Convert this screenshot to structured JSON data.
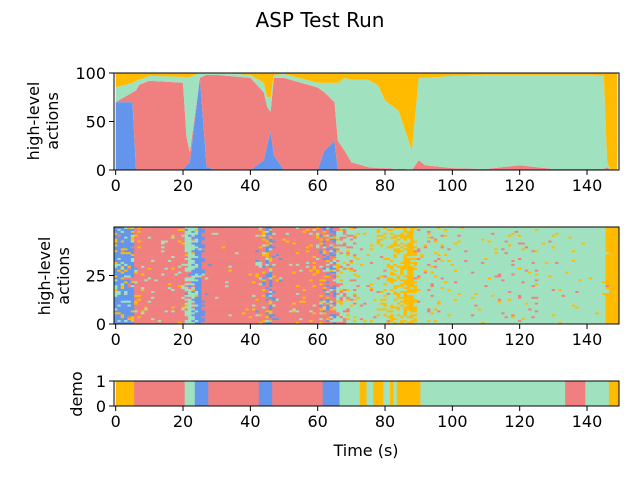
{
  "title": "ASP Test Run",
  "colors": {
    "blue": "#6495ED",
    "red": "#F08080",
    "green": "#A0E2C0",
    "orange": "#FFBB00"
  },
  "chart_data": [
    {
      "type": "area",
      "panel": "stacked-proportions",
      "ylabel": [
        "high-level",
        "actions"
      ],
      "xlim": [
        -0.5,
        149.5
      ],
      "ylim": [
        0,
        100
      ],
      "xticks": [
        0,
        20,
        40,
        60,
        80,
        100,
        120,
        140
      ],
      "yticks": [
        0,
        50,
        100
      ],
      "series_order": [
        "blue",
        "red",
        "green",
        "orange"
      ],
      "x": [
        0,
        5,
        6,
        7,
        10,
        20,
        21,
        22,
        25,
        27,
        30,
        40,
        44,
        45,
        46,
        47,
        50,
        60,
        62,
        65,
        66,
        68,
        70,
        75,
        78,
        80,
        84,
        86,
        88,
        90,
        92,
        100,
        110,
        120,
        130,
        135,
        140,
        145,
        146,
        147,
        149
      ],
      "values": {
        "blue": [
          70,
          70,
          2,
          0,
          0,
          0,
          5,
          8,
          95,
          3,
          0,
          0,
          10,
          25,
          40,
          15,
          0,
          0,
          20,
          30,
          0,
          0,
          0,
          0,
          0,
          0,
          0,
          0,
          0,
          0,
          0,
          0,
          0,
          0,
          0,
          0,
          0,
          0,
          0,
          0,
          0
        ],
        "red": [
          0,
          10,
          80,
          88,
          92,
          90,
          30,
          10,
          0,
          95,
          98,
          95,
          70,
          40,
          20,
          80,
          95,
          85,
          60,
          40,
          30,
          20,
          8,
          3,
          2,
          2,
          1,
          1,
          0,
          10,
          5,
          2,
          1,
          5,
          1,
          1,
          1,
          1,
          3,
          0,
          0
        ],
        "green": [
          15,
          10,
          10,
          5,
          5,
          6,
          60,
          78,
          5,
          2,
          2,
          3,
          10,
          10,
          15,
          3,
          4,
          5,
          10,
          20,
          60,
          75,
          85,
          90,
          85,
          70,
          60,
          40,
          20,
          85,
          90,
          95,
          97,
          93,
          97,
          97,
          97,
          96,
          5,
          0,
          0
        ],
        "orange": [
          15,
          10,
          8,
          7,
          3,
          4,
          5,
          4,
          0,
          0,
          0,
          2,
          10,
          25,
          25,
          2,
          1,
          10,
          10,
          10,
          10,
          5,
          7,
          7,
          13,
          28,
          39,
          59,
          80,
          5,
          5,
          3,
          2,
          2,
          2,
          2,
          2,
          3,
          92,
          100,
          100
        ]
      }
    },
    {
      "type": "heatmap",
      "panel": "sampled-actions",
      "ylabel": [
        "high-level",
        "actions"
      ],
      "xlim": [
        -0.5,
        149.5
      ],
      "ylim": [
        0,
        50
      ],
      "xticks": [
        0,
        20,
        40,
        60,
        80,
        100,
        120,
        140
      ],
      "yticks": [
        0,
        25
      ],
      "rows": 50
    },
    {
      "type": "heatmap",
      "panel": "demo",
      "ylabel": "demo",
      "xlabel": "Time (s)",
      "xlim": [
        -0.5,
        149.5
      ],
      "ylim": [
        0,
        1
      ],
      "xticks": [
        0,
        20,
        40,
        60,
        80,
        100,
        120,
        140
      ],
      "yticks": [
        0,
        1
      ],
      "segments": [
        {
          "start": 0,
          "end": 5.5,
          "color": "orange"
        },
        {
          "start": 5.5,
          "end": 20.5,
          "color": "red"
        },
        {
          "start": 20.5,
          "end": 23.5,
          "color": "green"
        },
        {
          "start": 23.5,
          "end": 27.5,
          "color": "blue"
        },
        {
          "start": 27.5,
          "end": 42.5,
          "color": "red"
        },
        {
          "start": 42.5,
          "end": 46.5,
          "color": "blue"
        },
        {
          "start": 46.5,
          "end": 61.5,
          "color": "red"
        },
        {
          "start": 61.5,
          "end": 66.5,
          "color": "blue"
        },
        {
          "start": 66.5,
          "end": 72.5,
          "color": "green"
        },
        {
          "start": 72.5,
          "end": 74.5,
          "color": "orange"
        },
        {
          "start": 74.5,
          "end": 76.5,
          "color": "green"
        },
        {
          "start": 76.5,
          "end": 79.5,
          "color": "orange"
        },
        {
          "start": 79.5,
          "end": 81.5,
          "color": "green"
        },
        {
          "start": 81.5,
          "end": 82.5,
          "color": "orange"
        },
        {
          "start": 82.5,
          "end": 83.5,
          "color": "green"
        },
        {
          "start": 83.5,
          "end": 90.5,
          "color": "orange"
        },
        {
          "start": 90.5,
          "end": 133.5,
          "color": "green"
        },
        {
          "start": 133.5,
          "end": 139.5,
          "color": "red"
        },
        {
          "start": 139.5,
          "end": 146.5,
          "color": "green"
        },
        {
          "start": 146.5,
          "end": 149.5,
          "color": "orange"
        }
      ]
    }
  ]
}
